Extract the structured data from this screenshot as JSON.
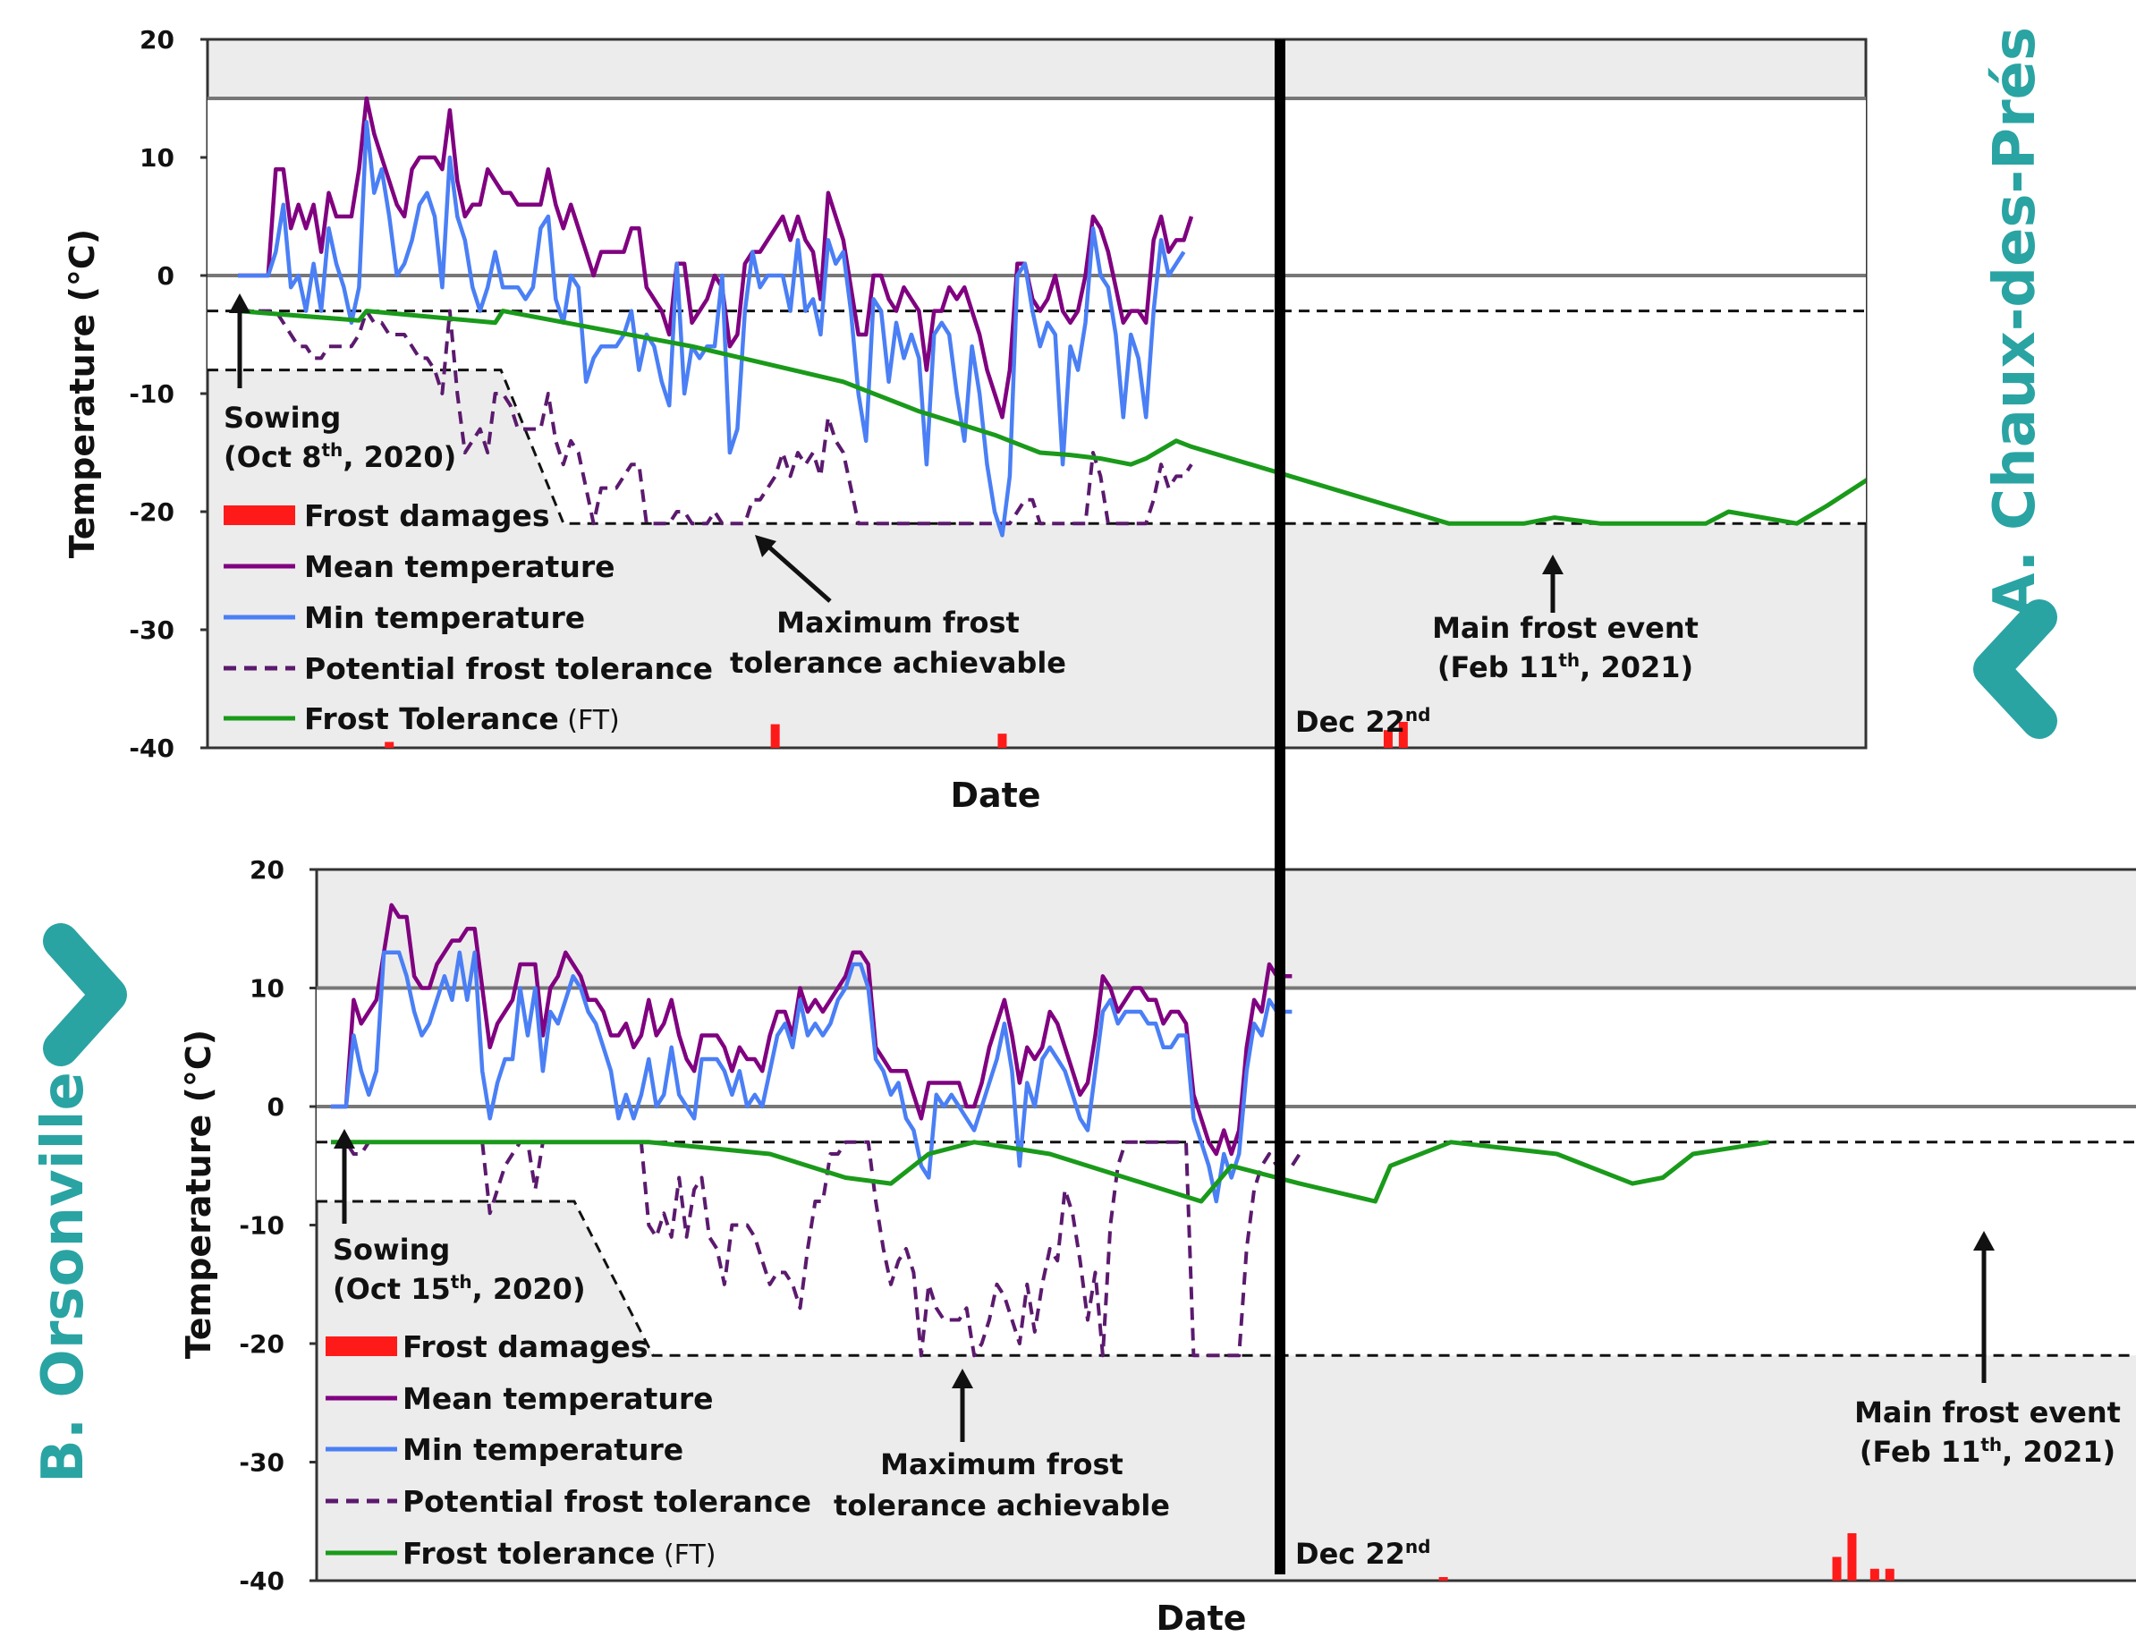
{
  "chart_data": [
    {
      "type": "line",
      "panel": "A",
      "site_label": "A. Chaux-des-Prés",
      "xlabel": "Date",
      "ylabel": "Temperature (°C)",
      "ylim": [
        -40,
        20
      ],
      "yticks": [
        "20",
        "10",
        "0",
        "-10",
        "-20",
        "-30",
        "-40"
      ],
      "x_unit": "days after Oct 8th, 2020",
      "divider_label": "Dec 22",
      "divider_sup": "nd",
      "reference_lines": {
        "upper_solid": 15,
        "zero_solid": 0,
        "upper_dashed": -3,
        "lower_dashed": -21
      },
      "sowing_label": "Sowing",
      "sowing_date_prefix": "(Oct 8",
      "sowing_date_sup": "th",
      "sowing_date_suffix": ", 2020)",
      "max_frost_label_1": "Maximum frost",
      "max_frost_label_2": "tolerance achievable",
      "main_event_label": "Main frost event",
      "main_event_prefix": "(Feb 11",
      "main_event_sup": "th",
      "main_event_suffix": ", 2021)",
      "legend": {
        "frost_damages": "Frost damages",
        "mean": "Mean temperature",
        "min": "Min temperature",
        "potential": "Potential frost tolerance",
        "ft": "Frost Tolerance",
        "ft_suffix": " (FT)"
      },
      "series_mean": [
        0,
        0,
        0,
        0,
        0,
        9,
        9,
        4,
        6,
        4,
        6,
        2,
        7,
        5,
        5,
        5,
        9,
        15,
        12,
        10,
        8,
        6,
        5,
        9,
        10,
        10,
        10,
        9,
        14,
        8,
        5,
        6,
        6,
        9,
        8,
        7,
        7,
        6,
        6,
        6,
        6,
        9,
        6,
        4,
        6,
        4,
        2,
        0,
        2,
        2,
        2,
        2,
        4,
        4,
        -1,
        -2,
        -3,
        -5,
        1,
        1,
        -4,
        -3,
        -2,
        0,
        -1,
        -6,
        -5,
        1,
        2,
        2,
        3,
        4,
        5,
        3,
        5,
        3,
        2,
        -2,
        7,
        5,
        3,
        -1,
        -5,
        -5,
        0,
        0,
        -2,
        -3,
        -1,
        -2,
        -3,
        -8,
        -3,
        -3,
        -1,
        -2,
        -1,
        -3,
        -5,
        -8,
        -10,
        -12,
        -8,
        1,
        1,
        -2,
        -3,
        -2,
        0,
        -3,
        -4,
        -3,
        0,
        5,
        4,
        2,
        -1,
        -4,
        -3,
        -3,
        -4,
        3,
        5,
        2,
        3,
        3,
        5
      ],
      "series_min": [
        0,
        0,
        0,
        0,
        0,
        2,
        6,
        -1,
        0,
        -3,
        1,
        -3,
        4,
        1,
        -1,
        -4,
        -1,
        13,
        7,
        9,
        5,
        0,
        1,
        3,
        6,
        7,
        5,
        -1,
        10,
        5,
        3,
        -1,
        -3,
        -1,
        2,
        -1,
        -1,
        -1,
        -2,
        -1,
        4,
        5,
        -2,
        -4,
        0,
        -1,
        -9,
        -7,
        -6,
        -6,
        -6,
        -5,
        -3,
        -8,
        -5,
        -6,
        -9,
        -11,
        1,
        -10,
        -6,
        -7,
        -6,
        -6,
        0,
        -15,
        -13,
        -3,
        2,
        -1,
        0,
        0,
        0,
        -3,
        3,
        -3,
        -2,
        -5,
        3,
        1,
        2,
        -3,
        -10,
        -14,
        -2,
        -3,
        -9,
        -4,
        -7,
        -5,
        -7,
        -16,
        -5,
        -4,
        -5,
        -10,
        -14,
        -6,
        -10,
        -16,
        -20,
        -22,
        -17,
        0,
        1,
        -3,
        -6,
        -4,
        -5,
        -16,
        -6,
        -8,
        -4,
        4,
        0,
        -1,
        -5,
        -12,
        -5,
        -7,
        -12,
        -3,
        3,
        0,
        1,
        2
      ],
      "series_potential": [
        -3,
        -3,
        -3,
        -3,
        -3,
        -3,
        -4,
        -5,
        -6,
        -6,
        -7,
        -7,
        -6,
        -6,
        -6,
        -6,
        -5,
        -3,
        -4,
        -4,
        -5,
        -5,
        -5,
        -6,
        -7,
        -7,
        -8,
        -10,
        -3,
        -10,
        -15,
        -14,
        -13,
        -15,
        -10,
        -10,
        -11,
        -13,
        -13,
        -13,
        -13,
        -10,
        -14,
        -16,
        -14,
        -15,
        -18,
        -21,
        -18,
        -18,
        -18,
        -17,
        -16,
        -16,
        -21,
        -21,
        -21,
        -21,
        -20,
        -20,
        -21,
        -21,
        -21,
        -20,
        -21,
        -21,
        -21,
        -21,
        -19,
        -19,
        -18,
        -17,
        -15,
        -17,
        -15,
        -16,
        -15,
        -17,
        -12,
        -14,
        -15,
        -18,
        -21,
        -21,
        -21,
        -21,
        -21,
        -21,
        -21,
        -21,
        -21,
        -21,
        -21,
        -21,
        -21,
        -21,
        -21,
        -21,
        -21,
        -21,
        -21,
        -21,
        -21,
        -20,
        -19,
        -19,
        -21,
        -21,
        -21,
        -21,
        -21,
        -21,
        -21,
        -15,
        -17,
        -21,
        -21,
        -21,
        -21,
        -21,
        -21,
        -19,
        -16,
        -18,
        -17,
        -17,
        -16
      ],
      "series_ft": [
        [
          0,
          -3
        ],
        [
          16,
          -3.8
        ],
        [
          17,
          -3
        ],
        [
          34,
          -4
        ],
        [
          35,
          -3
        ],
        [
          60,
          -6
        ],
        [
          80,
          -9
        ],
        [
          90,
          -11.5
        ],
        [
          100,
          -13.5
        ],
        [
          106,
          -15
        ],
        [
          110,
          -15.2
        ],
        [
          114,
          -15.5
        ],
        [
          118,
          -16
        ],
        [
          120,
          -15.5
        ],
        [
          124,
          -14
        ],
        [
          126,
          -14.5
        ],
        [
          160,
          -21
        ],
        [
          164,
          -21
        ],
        [
          170,
          -21
        ],
        [
          174,
          -20.5
        ],
        [
          180,
          -21
        ],
        [
          194,
          -21
        ],
        [
          197,
          -20
        ],
        [
          206,
          -21
        ],
        [
          210,
          -19.5
        ],
        [
          216,
          -17
        ]
      ],
      "frost_damage": [
        [
          20,
          0.5
        ],
        [
          71,
          2.0
        ],
        [
          101,
          1.2
        ],
        [
          152,
          1.5
        ],
        [
          154,
          2.2
        ]
      ]
    },
    {
      "type": "line",
      "panel": "B",
      "site_label": "B. Orsonville",
      "xlabel": "Date",
      "ylabel": "Temperature (°C)",
      "ylim": [
        -40,
        20
      ],
      "yticks": [
        "20",
        "10",
        "0",
        "-10",
        "-20",
        "-30",
        "-40"
      ],
      "x_unit": "days after Oct 15th, 2020",
      "divider_label": "Dec 22",
      "divider_sup": "nd",
      "reference_lines": {
        "upper_solid": 10,
        "zero_solid": 0,
        "upper_dashed": -3,
        "lower_dashed": -21
      },
      "sowing_label": "Sowing",
      "sowing_date_prefix": "(Oct 15",
      "sowing_date_sup": "th",
      "sowing_date_suffix": ", 2020)",
      "max_frost_label_1": "Maximum frost",
      "max_frost_label_2": "tolerance achievable",
      "main_event_label": "Main frost event",
      "main_event_prefix": "(Feb 11",
      "main_event_sup": "th",
      "main_event_suffix": ", 2021)",
      "legend": {
        "frost_damages": "Frost damages",
        "mean": "Mean temperature",
        "min": "Min temperature",
        "potential": "Potential frost tolerance",
        "ft": "Frost tolerance",
        "ft_suffix": " (FT)"
      },
      "series_mean": [
        0,
        0,
        0,
        9,
        7,
        8,
        9,
        13,
        17,
        16,
        16,
        11,
        10,
        10,
        12,
        13,
        14,
        14,
        15,
        15,
        10,
        5,
        7,
        8,
        9,
        12,
        12,
        12,
        6,
        10,
        11,
        13,
        12,
        11,
        9,
        9,
        8,
        6,
        6,
        7,
        5,
        6,
        9,
        6,
        7,
        9,
        6,
        4,
        3,
        6,
        6,
        6,
        5,
        3,
        5,
        4,
        4,
        3,
        6,
        8,
        8,
        6,
        10,
        8,
        9,
        8,
        9,
        10,
        11,
        13,
        13,
        12,
        5,
        4,
        3,
        3,
        3,
        1,
        -1,
        2,
        2,
        2,
        2,
        2,
        0,
        0,
        2,
        5,
        7,
        9,
        6,
        2,
        5,
        4,
        5,
        8,
        7,
        5,
        3,
        1,
        2,
        6,
        11,
        10,
        8,
        9,
        10,
        10,
        9,
        9,
        7,
        8,
        8,
        7,
        1,
        -1,
        -3,
        -4,
        -2,
        -4,
        -2,
        5,
        9,
        8,
        12,
        11,
        11,
        11
      ],
      "series_min": [
        0,
        0,
        0,
        6,
        3,
        1,
        3,
        13,
        13,
        13,
        11,
        8,
        6,
        7,
        9,
        11,
        9,
        13,
        9,
        13,
        3,
        -1,
        2,
        4,
        4,
        10,
        6,
        10,
        3,
        8,
        7,
        9,
        11,
        10,
        8,
        7,
        5,
        3,
        -1,
        1,
        -1,
        1,
        4,
        0,
        1,
        5,
        1,
        0,
        -1,
        4,
        4,
        4,
        3,
        1,
        3,
        0,
        1,
        0,
        3,
        6,
        7,
        5,
        9,
        6,
        7,
        6,
        7,
        9,
        10,
        12,
        12,
        10,
        4,
        3,
        1,
        2,
        -1,
        -2,
        -5,
        -6,
        1,
        0,
        1,
        0,
        -1,
        -2,
        0,
        2,
        4,
        7,
        3,
        -5,
        2,
        0,
        4,
        5,
        4,
        3,
        1,
        -1,
        -2,
        3,
        8,
        9,
        7,
        8,
        8,
        8,
        7,
        7,
        5,
        5,
        6,
        6,
        -1,
        -3,
        -5,
        -8,
        -4,
        -6,
        -4,
        3,
        7,
        6,
        9,
        8,
        8,
        8
      ],
      "series_potential": [
        -3,
        -3,
        -3,
        -4,
        -4,
        -3,
        -3,
        -3,
        -3,
        -3,
        -3,
        -3,
        -3,
        -3,
        -3,
        -3,
        -3,
        -3,
        -3,
        -3,
        -3,
        -9,
        -7,
        -5,
        -4,
        -3,
        -3,
        -7,
        -3,
        -3,
        -3,
        -3,
        -3,
        -3,
        -3,
        -3,
        -3,
        -3,
        -3,
        -3,
        -3,
        -3,
        -10,
        -11,
        -9,
        -11,
        -6,
        -11,
        -7,
        -6,
        -11,
        -12,
        -15,
        -10,
        -10,
        -10,
        -11,
        -13,
        -15,
        -14,
        -14,
        -15,
        -17,
        -12,
        -8,
        -8,
        -4,
        -4,
        -3,
        -3,
        -3,
        -3,
        -8,
        -12,
        -15,
        -13,
        -12,
        -14,
        -21,
        -15,
        -17,
        -18,
        -18,
        -18,
        -17,
        -21,
        -20,
        -18,
        -15,
        -16,
        -18,
        -20,
        -15,
        -19,
        -15,
        -12,
        -13,
        -7,
        -9,
        -13,
        -18,
        -14,
        -21,
        -10,
        -5,
        -3,
        -3,
        -3,
        -3,
        -3,
        -3,
        -3,
        -3,
        -3,
        -21,
        -21,
        -21,
        -21,
        -21,
        -21,
        -21,
        -12,
        -7,
        -5,
        -4,
        -5,
        -5,
        -5,
        -4
      ],
      "series_ft": [
        [
          0,
          -3
        ],
        [
          42,
          -3
        ],
        [
          58,
          -4
        ],
        [
          68,
          -6
        ],
        [
          74,
          -6.5
        ],
        [
          79,
          -4
        ],
        [
          85,
          -3
        ],
        [
          95,
          -4
        ],
        [
          115,
          -8
        ],
        [
          119,
          -5
        ],
        [
          128,
          -6.5
        ],
        [
          138,
          -8
        ],
        [
          140,
          -5
        ],
        [
          148,
          -3
        ],
        [
          162,
          -4
        ],
        [
          172,
          -6.5
        ],
        [
          176,
          -6
        ],
        [
          180,
          -4
        ],
        [
          190,
          -3
        ]
      ],
      "frost_damage": [
        [
          147,
          0.3
        ],
        [
          199,
          2.0
        ],
        [
          201,
          4.0
        ],
        [
          204,
          1.0
        ],
        [
          206,
          1.0
        ]
      ]
    }
  ]
}
